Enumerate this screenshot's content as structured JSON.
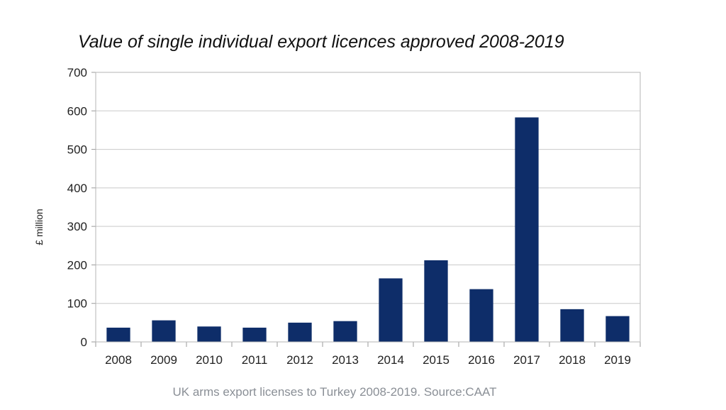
{
  "chart_data": {
    "type": "bar",
    "title": "Value of single individual export licences approved 2008-2019",
    "ylabel": "£ million",
    "xlabel": "",
    "categories": [
      "2008",
      "2009",
      "2010",
      "2011",
      "2012",
      "2013",
      "2014",
      "2015",
      "2016",
      "2017",
      "2018",
      "2019"
    ],
    "values": [
      37,
      56,
      40,
      37,
      50,
      54,
      165,
      212,
      137,
      583,
      85,
      67
    ],
    "ylim": [
      0,
      700
    ],
    "yticks": [
      "0",
      "100",
      "200",
      "300",
      "400",
      "500",
      "600",
      "700"
    ],
    "grid": true,
    "legend": "none",
    "bar_color": "#0e2d69",
    "grid_color": "#c9c9c9"
  },
  "caption": "UK arms export licenses to Turkey 2008-2019. Source:CAAT"
}
